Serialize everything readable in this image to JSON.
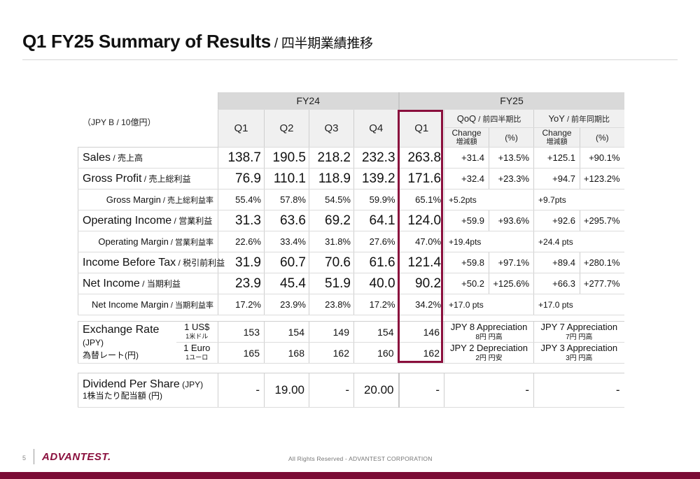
{
  "page": {
    "title_main": "Q1 FY25 Summary of Results",
    "title_jp": " / 四半期業績推移",
    "unit_note": "（JPY B / 10億円）",
    "page_number": "5",
    "logo_text": "ADVANTEST.",
    "footer_text": "All Rights Reserved - ADVANTEST CORPORATION",
    "accent_color": "#8a0f3d"
  },
  "header": {
    "fy24": "FY24",
    "fy25": "FY25",
    "q1": "Q1",
    "q2": "Q2",
    "q3": "Q3",
    "q4": "Q4",
    "q1_25": "Q1",
    "qoq": "QoQ",
    "qoq_jp": " / 前四半期比",
    "yoy": "YoY",
    "yoy_jp": " / 前年同期比",
    "change": "Change",
    "change_jp": "増減額",
    "pct": "(%)"
  },
  "rows": [
    {
      "label": "Sales",
      "jp": " / 売上高",
      "q1": "138.7",
      "q2": "190.5",
      "q3": "218.2",
      "q4": "232.3",
      "fy25": "263.8",
      "qoq_chg": "+31.4",
      "qoq_pct": "+13.5%",
      "yoy_chg": "+125.1",
      "yoy_pct": "+90.1%"
    },
    {
      "label": "Gross Profit",
      "jp": " / 売上総利益",
      "q1": "76.9",
      "q2": "110.1",
      "q3": "118.9",
      "q4": "139.2",
      "fy25": "171.6",
      "qoq_chg": "+32.4",
      "qoq_pct": "+23.3%",
      "yoy_chg": "+94.7",
      "yoy_pct": "+123.2%"
    },
    {
      "label": "Gross Margin",
      "jp": " / 売上総利益率",
      "q1": "55.4%",
      "q2": "57.8%",
      "q3": "54.5%",
      "q4": "59.9%",
      "fy25": "65.1%",
      "qoq_chg": "+5.2pts",
      "qoq_pct": "",
      "yoy_chg": "+9.7pts",
      "yoy_pct": ""
    },
    {
      "label": "Operating Income",
      "jp": " / 営業利益",
      "q1": "31.3",
      "q2": "63.6",
      "q3": "69.2",
      "q4": "64.1",
      "fy25": "124.0",
      "qoq_chg": "+59.9",
      "qoq_pct": "+93.6%",
      "yoy_chg": "+92.6",
      "yoy_pct": "+295.7%"
    },
    {
      "label": "Operating Margin",
      "jp": " / 営業利益率",
      "q1": "22.6%",
      "q2": "33.4%",
      "q3": "31.8%",
      "q4": "27.6%",
      "fy25": "47.0%",
      "qoq_chg": "+19.4pts",
      "qoq_pct": "",
      "yoy_chg": "+24.4 pts",
      "yoy_pct": ""
    },
    {
      "label": "Income Before Tax",
      "jp": " / 税引前利益",
      "q1": "31.9",
      "q2": "60.7",
      "q3": "70.6",
      "q4": "61.6",
      "fy25": "121.4",
      "qoq_chg": "+59.8",
      "qoq_pct": "+97.1%",
      "yoy_chg": "+89.4",
      "yoy_pct": "+280.1%"
    },
    {
      "label": "Net Income",
      "jp": " / 当期利益",
      "q1": "23.9",
      "q2": "45.4",
      "q3": "51.9",
      "q4": "40.0",
      "fy25": "90.2",
      "qoq_chg": "+50.2",
      "qoq_pct": "+125.6%",
      "yoy_chg": "+66.3",
      "yoy_pct": "+277.7%"
    },
    {
      "label": "Net Income Margin",
      "jp": " / 当期利益率",
      "q1": "17.2%",
      "q2": "23.9%",
      "q3": "23.8%",
      "q4": "17.2%",
      "fy25": "34.2%",
      "qoq_chg": "+17.0 pts",
      "qoq_pct": "",
      "yoy_chg": "+17.0 pts",
      "yoy_pct": ""
    }
  ],
  "fx": {
    "label": "Exchange Rate",
    "label_unit": " (JPY)",
    "label_jp": "為替レート(円)",
    "usd": {
      "cur": "1 US$",
      "cur_jp": "1米ドル",
      "q1": "153",
      "q2": "154",
      "q3": "149",
      "q4": "154",
      "fy25": "146",
      "qoq": "JPY 8 Appreciation",
      "qoq_jp": "8円 円高",
      "yoy": "JPY 7 Appreciation",
      "yoy_jp": "7円 円高"
    },
    "eur": {
      "cur": "1 Euro",
      "cur_jp": "1ユーロ",
      "q1": "165",
      "q2": "168",
      "q3": "162",
      "q4": "160",
      "fy25": "162",
      "qoq": "JPY 2 Depreciation",
      "qoq_jp": "2円 円安",
      "yoy": "JPY 3 Appreciation",
      "yoy_jp": "3円 円高"
    }
  },
  "dividend": {
    "label": "Dividend Per Share",
    "label_unit": " (JPY)",
    "label_jp": "1株当たり配当額 (円)",
    "q1": "-",
    "q2": "19.00",
    "q3": "-",
    "q4": "20.00",
    "fy25": "-",
    "qoq": "-",
    "yoy": "-"
  }
}
